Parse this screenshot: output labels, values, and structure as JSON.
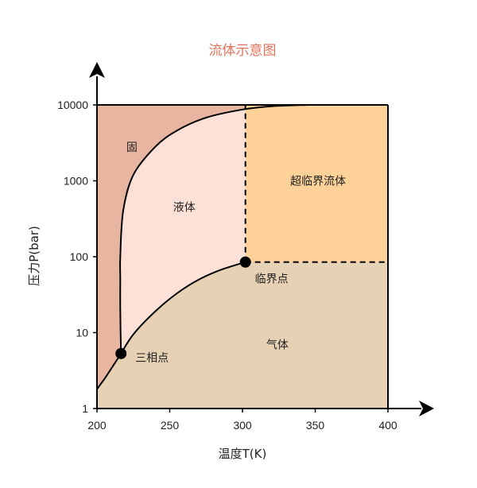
{
  "chart_data": {
    "type": "area",
    "title": "流体示意图",
    "xlabel": "温度T(K)",
    "ylabel": "压力P(bar)",
    "xlim": [
      200,
      400
    ],
    "ylim": [
      1,
      10000
    ],
    "yscale": "log",
    "grid": false,
    "x_ticks": [
      200,
      250,
      300,
      350,
      400
    ],
    "x_tick_labels": [
      "200",
      "250",
      "300",
      "350",
      "400"
    ],
    "y_ticks": [
      1,
      10,
      100,
      1000,
      10000
    ],
    "y_tick_labels": [
      "1",
      "10",
      "100",
      "1000",
      "10000"
    ],
    "colors": {
      "solid": "#e8b5a0",
      "liquid": "#fde0d6",
      "supercritical": "#fdd198",
      "gas": "#e7d1b4",
      "title": "#e0735a",
      "line": "#000000"
    },
    "regions": [
      {
        "key": "solid",
        "label": "固",
        "x": 224,
        "y": 2800
      },
      {
        "key": "liquid",
        "label": "液体",
        "x": 260,
        "y": 450
      },
      {
        "key": "supercritical",
        "label": "超临界流体",
        "x": 352,
        "y": 1000
      },
      {
        "key": "gas",
        "label": "气体",
        "x": 324,
        "y": 7
      }
    ],
    "boundaries": {
      "sublimation": [
        [
          200,
          1.8
        ],
        [
          206,
          2.6
        ],
        [
          212,
          3.9
        ],
        [
          216.5,
          5.3
        ]
      ],
      "vaporization": [
        [
          216.5,
          5.3
        ],
        [
          225,
          9.5
        ],
        [
          240,
          19
        ],
        [
          255,
          33
        ],
        [
          270,
          50
        ],
        [
          285,
          67
        ],
        [
          302,
          85
        ]
      ],
      "melting": [
        [
          216.5,
          5.3
        ],
        [
          216,
          20
        ],
        [
          216,
          50
        ],
        [
          216,
          100
        ],
        [
          218,
          400
        ],
        [
          225,
          1200
        ],
        [
          240,
          2800
        ],
        [
          255,
          4600
        ],
        [
          275,
          6800
        ],
        [
          300,
          8700
        ],
        [
          320,
          9600
        ],
        [
          345,
          10000
        ]
      ],
      "critical_vertical": [
        [
          302,
          85
        ],
        [
          302,
          10000
        ]
      ],
      "critical_horizontal": [
        [
          302,
          85
        ],
        [
          400,
          85
        ]
      ]
    },
    "points": [
      {
        "name": "triple",
        "label": "三相点",
        "x": 216.5,
        "y": 5.3
      },
      {
        "name": "critical",
        "label": "临界点",
        "x": 302,
        "y": 85
      }
    ]
  }
}
